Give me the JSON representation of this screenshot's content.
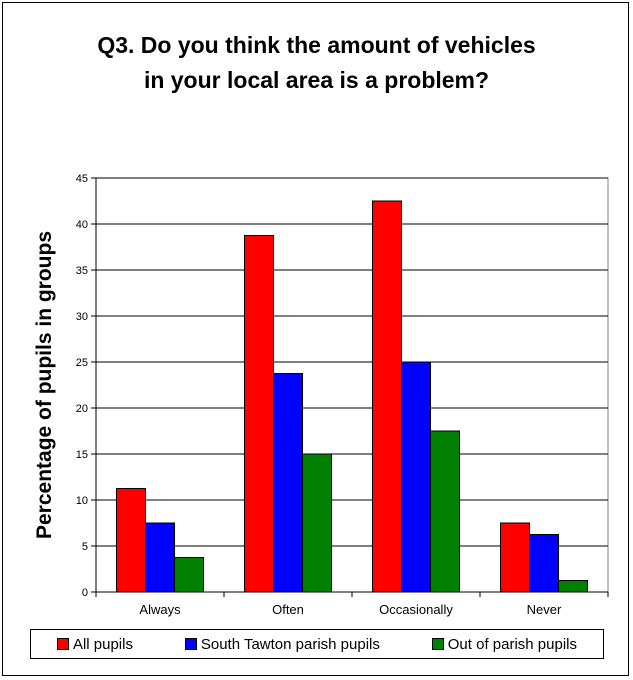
{
  "chart_data": {
    "type": "bar",
    "title_lines": [
      "Q3. Do you think the amount of vehicles",
      "in your local area is a problem?"
    ],
    "ylabel": "Percentage of pupils in groups",
    "xlabel": "",
    "categories": [
      "Always",
      "Often",
      "Occasionally",
      "Never"
    ],
    "series": [
      {
        "name": "All pupils",
        "color": "#ff0000",
        "values": [
          11.25,
          38.75,
          42.5,
          7.5
        ]
      },
      {
        "name": "South Tawton parish pupils",
        "color": "#0000ff",
        "values": [
          7.5,
          23.75,
          25,
          6.25
        ]
      },
      {
        "name": "Out of parish pupils",
        "color": "#008000",
        "values": [
          3.75,
          15,
          17.5,
          1.25
        ]
      }
    ],
    "ylim": [
      0,
      45
    ],
    "yticks": [
      0,
      5,
      10,
      15,
      20,
      25,
      30,
      35,
      40,
      45
    ],
    "grid": true,
    "legend": "bottom"
  }
}
